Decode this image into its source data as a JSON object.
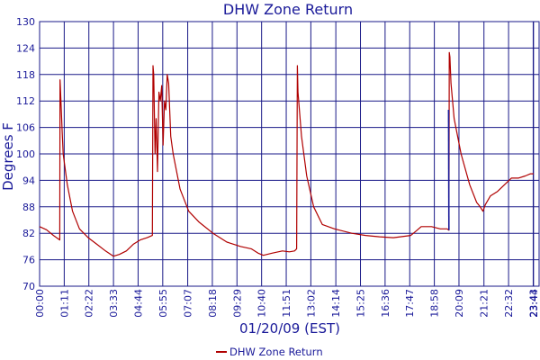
{
  "colors": {
    "series": "#b00000",
    "spike": "#1a1a99",
    "grid": "#1a1a88",
    "text": "#1a1a99"
  },
  "chart_data": {
    "type": "line",
    "title": "DHW Zone Return",
    "xlabel": "01/20/09 (EST)",
    "ylabel": "Degrees F",
    "ylim": [
      70,
      130
    ],
    "yticks": [
      70,
      76,
      82,
      88,
      94,
      100,
      106,
      112,
      118,
      124,
      130
    ],
    "xlim_minutes": [
      0,
      1440
    ],
    "xticks": [
      "00:00",
      "01:11",
      "02:22",
      "03:33",
      "04:44",
      "05:55",
      "07:07",
      "08:18",
      "09:29",
      "10:40",
      "11:51",
      "13:02",
      "14:14",
      "15:25",
      "16:36",
      "17:47",
      "18:58",
      "20:09",
      "21:21",
      "22:32",
      "23:43",
      "23:44"
    ],
    "grid": true,
    "legend": {
      "position": "bottom-center",
      "entries": [
        "DHW Zone Return"
      ]
    },
    "series": [
      {
        "name": "DHW Zone Return",
        "points": [
          [
            "00:00",
            83.5
          ],
          [
            "00:20",
            82.8
          ],
          [
            "00:40",
            81.5
          ],
          [
            "00:58",
            80.5
          ],
          [
            "00:59",
            116.8
          ],
          [
            "01:00",
            115.0
          ],
          [
            "01:05",
            105.0
          ],
          [
            "01:08",
            100.0
          ],
          [
            "01:20",
            93.0
          ],
          [
            "01:35",
            87.0
          ],
          [
            "01:55",
            83.0
          ],
          [
            "02:20",
            81.0
          ],
          [
            "02:45",
            79.5
          ],
          [
            "03:10",
            78.0
          ],
          [
            "03:33",
            76.8
          ],
          [
            "03:50",
            77.2
          ],
          [
            "04:10",
            78.0
          ],
          [
            "04:30",
            79.5
          ],
          [
            "04:50",
            80.5
          ],
          [
            "05:10",
            81.0
          ],
          [
            "05:25",
            81.5
          ],
          [
            "05:27",
            120.0
          ],
          [
            "05:29",
            118.0
          ],
          [
            "05:33",
            100.0
          ],
          [
            "05:36",
            108.0
          ],
          [
            "05:40",
            96.0
          ],
          [
            "05:44",
            114.0
          ],
          [
            "05:48",
            112.0
          ],
          [
            "05:52",
            115.5
          ],
          [
            "05:56",
            102.0
          ],
          [
            "06:00",
            112.0
          ],
          [
            "06:04",
            110.0
          ],
          [
            "06:08",
            118.0
          ],
          [
            "06:12",
            116.0
          ],
          [
            "06:18",
            104.0
          ],
          [
            "06:25",
            100.0
          ],
          [
            "06:45",
            92.0
          ],
          [
            "07:10",
            87.0
          ],
          [
            "07:40",
            84.5
          ],
          [
            "08:20",
            82.0
          ],
          [
            "09:00",
            80.0
          ],
          [
            "09:40",
            79.0
          ],
          [
            "10:10",
            78.5
          ],
          [
            "10:30",
            77.5
          ],
          [
            "10:45",
            77.0
          ],
          [
            "11:10",
            77.5
          ],
          [
            "11:40",
            78.0
          ],
          [
            "12:00",
            77.8
          ],
          [
            "12:15",
            78.0
          ],
          [
            "12:21",
            78.5
          ],
          [
            "12:23",
            120.0
          ],
          [
            "12:25",
            114.0
          ],
          [
            "12:35",
            104.0
          ],
          [
            "12:50",
            95.0
          ],
          [
            "13:10",
            88.0
          ],
          [
            "13:35",
            84.0
          ],
          [
            "14:10",
            83.0
          ],
          [
            "15:00",
            82.0
          ],
          [
            "15:40",
            81.5
          ],
          [
            "16:20",
            81.2
          ],
          [
            "17:00",
            81.0
          ],
          [
            "17:30",
            81.3
          ],
          [
            "17:50",
            81.5
          ],
          [
            "18:05",
            82.5
          ],
          [
            "18:20",
            83.5
          ],
          [
            "18:50",
            83.5
          ],
          [
            "19:15",
            83.0
          ],
          [
            "19:35",
            83.0
          ],
          [
            "19:40",
            82.7
          ],
          [
            "19:41",
            123.0
          ],
          [
            "19:43",
            122.0
          ],
          [
            "19:46",
            116.0
          ],
          [
            "19:55",
            108.0
          ],
          [
            "20:15",
            100.0
          ],
          [
            "20:40",
            93.0
          ],
          [
            "21:00",
            89.0
          ],
          [
            "21:10",
            88.0
          ],
          [
            "21:18",
            87.0
          ],
          [
            "21:25",
            88.5
          ],
          [
            "21:40",
            90.5
          ],
          [
            "22:00",
            91.5
          ],
          [
            "22:20",
            93.0
          ],
          [
            "22:40",
            94.5
          ],
          [
            "23:00",
            94.5
          ],
          [
            "23:20",
            95.0
          ],
          [
            "23:35",
            95.5
          ],
          [
            "23:44",
            95.5
          ]
        ]
      }
    ],
    "highlights": [
      {
        "color": "#1a1a99",
        "points": [
          [
            "19:39",
            110.0
          ],
          [
            "19:40",
            82.7
          ]
        ]
      }
    ]
  }
}
